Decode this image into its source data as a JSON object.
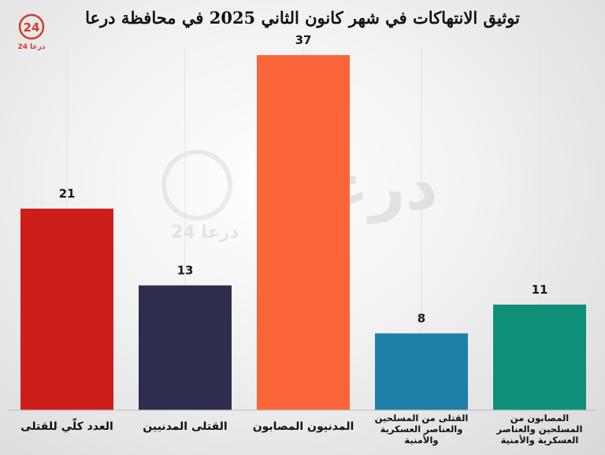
{
  "chart_data": {
    "type": "bar",
    "title": "توثيق الانتهاكات في شهر كانون الثاني 2025 في محافظة درعا",
    "categories": [
      [
        "العدد كلّي للقتلى"
      ],
      [
        "القتلى المدنيين"
      ],
      [
        "المدنيون المصابون"
      ],
      [
        "القتلى من المسلحين",
        "والعناصر العسكرية",
        "والأمنية"
      ],
      [
        "المصابون من",
        "المسلحين والعناصر",
        "العسكرية والأمنية"
      ]
    ],
    "values": [
      21,
      13,
      37,
      8,
      11
    ],
    "colors": [
      "#cc1f1a",
      "#2e2d4d",
      "#fa663a",
      "#1f7fa6",
      "#0f8f7a"
    ],
    "ylim": [
      0,
      37
    ],
    "grid": false,
    "legend": "none"
  },
  "branding": {
    "logo_number": "24",
    "logo_text": "درعا 24",
    "logo_color": "#d43a2f",
    "watermark_text": "درعا",
    "watermark_sub": "درعا 24"
  }
}
